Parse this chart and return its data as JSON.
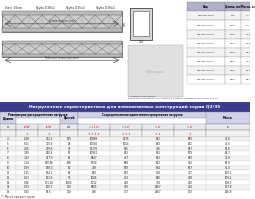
{
  "title_table2": "Нагрузочные характеристики для алюминиевых конструкций серии Q2/35",
  "top_labels": [
    "Лист 16мм",
    "Труба D38х2",
    "Труба D35х2",
    "Труба D38х2"
  ],
  "dim_labels": [
    "Длина модуля (мм)",
    "Рабочая (точка под ключ)"
  ],
  "profile_note": "* Профильный элемент\nБалки W1 [кН] DIN051 0.8 / Точка W0.5 DIN504 / Профиль W1.5 DIN1.5 (4 элемента).",
  "table1_headers": [
    "Вид",
    "Длина, мм",
    "Масса, кг"
  ],
  "table1_rows": [
    [
      "q2s-565-5000",
      "500",
      "1.7"
    ],
    [
      "q2s-565-10000",
      "1000",
      "8.1"
    ],
    [
      "q2s-565-15000",
      "1500",
      "12.5"
    ],
    [
      "q2s-565-20000",
      "2000",
      "16.8"
    ],
    [
      "q2s-565-25000",
      "2500",
      "18.3"
    ],
    [
      "q2s-565-30000",
      "3000",
      "22.2"
    ],
    [
      "q2s-565-35000",
      "3500",
      "26.0"
    ],
    [
      "q2s-565-40000",
      "4000",
      "29.7"
    ]
  ],
  "table2_rows": [
    [
      "4",
      "8.28",
      "332.2",
      "145",
      "10889",
      "1335",
      "832",
      "690",
      "36.6"
    ],
    [
      "5",
      "6.21",
      "310.5",
      "28",
      "10580",
      "1054",
      "893",
      "832",
      "45.5"
    ],
    [
      "6",
      "4.66",
      "279.6",
      "39",
      "13170",
      "946",
      "756",
      "587",
      "54.6"
    ],
    [
      "7",
      "3.49",
      "260.4",
      "52",
      "10951",
      "843",
      "650",
      "509",
      "63.7"
    ],
    [
      "8",
      "3.12",
      "217.0",
      "61",
      "9847",
      "757",
      "812",
      "870",
      "72.8"
    ],
    [
      "9",
      "2.14",
      "190.96",
      "196",
      "8034",
      "688",
      "502",
      "402",
      "81.9"
    ],
    [
      "10",
      "1.99",
      "198.0",
      "80",
      "728",
      "999",
      "994",
      "867",
      "91.0"
    ],
    [
      "11",
      "1.31",
      "144.1",
      "90",
      "640",
      "543",
      "418",
      "322",
      "100.1"
    ],
    [
      "12",
      "1.03",
      "123.6",
      "97",
      "1006",
      "433",
      "860",
      "278",
      "109.2"
    ],
    [
      "13",
      "0.86",
      "171.18",
      "1065",
      "5012",
      "468",
      "318",
      "240",
      "118.3"
    ],
    [
      "14",
      "0.73",
      "100.7",
      "110",
      "9805",
      "399",
      "2667",
      "214",
      "127.8"
    ],
    [
      "15",
      "0.41",
      "81.5",
      "118",
      "406",
      "317",
      "2467",
      "173",
      "136.9"
    ]
  ],
  "footnote": "** Масса каждого груза",
  "bg_color": "#ffffff",
  "table1_header_bg": "#b0b0c8",
  "table2_title_bg": "#3c3c8c",
  "table2_title_fg": "#ffffff",
  "table2_header_bg": "#d0d0e8",
  "table_border": "#888888",
  "row_even": "#f2f2f2",
  "row_odd": "#ffffff",
  "truss_fill": "#cccccc",
  "truss_edge": "#555555"
}
